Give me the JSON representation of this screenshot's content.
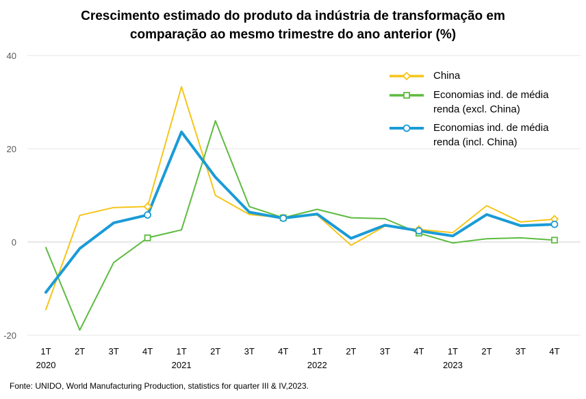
{
  "title_line1": "Crescimento estimado do produto da indústria de transformação em",
  "title_line2": "comparação ao mesmo trimestre do ano anterior (%)",
  "source": "Fonte: UNIDO, World Manufacturing Production, statistics for quarter III & IV,2023.",
  "chart_data": {
    "type": "line",
    "categories": [
      "1T\n2020",
      "2T",
      "3T",
      "4T",
      "1T\n2021",
      "2T",
      "3T",
      "4T",
      "1T\n2022",
      "2T",
      "3T",
      "4T",
      "1T\n2023",
      "2T",
      "3T",
      "4T"
    ],
    "ylim": [
      -20,
      40
    ],
    "yticks": [
      -20,
      0,
      20,
      40
    ],
    "grid": true,
    "legend_position": "top-right",
    "series": [
      {
        "name": "China",
        "color": "#F5C518",
        "marker": "diamond",
        "values": [
          -14.5,
          5.7,
          7.4,
          7.6,
          33.3,
          10.0,
          5.9,
          5.2,
          5.8,
          -0.7,
          3.4,
          2.7,
          2.0,
          7.8,
          4.3,
          4.9
        ]
      },
      {
        "name": "Economias ind. de média\nrenda (excl. China)",
        "color": "#5DBB3F",
        "marker": "square",
        "values": [
          -1.2,
          -18.9,
          -4.4,
          0.9,
          2.6,
          26.0,
          7.6,
          5.2,
          7.0,
          5.2,
          5.0,
          1.9,
          -0.2,
          0.7,
          0.9,
          0.4
        ]
      },
      {
        "name": "Economias ind. de média\nrenda (incl. China)",
        "color": "#1A9BD7",
        "marker": "circle",
        "values": [
          -10.8,
          -1.4,
          4.1,
          5.8,
          23.6,
          13.9,
          6.4,
          5.1,
          6.0,
          0.8,
          3.6,
          2.4,
          1.3,
          5.9,
          3.5,
          3.8
        ]
      }
    ]
  }
}
